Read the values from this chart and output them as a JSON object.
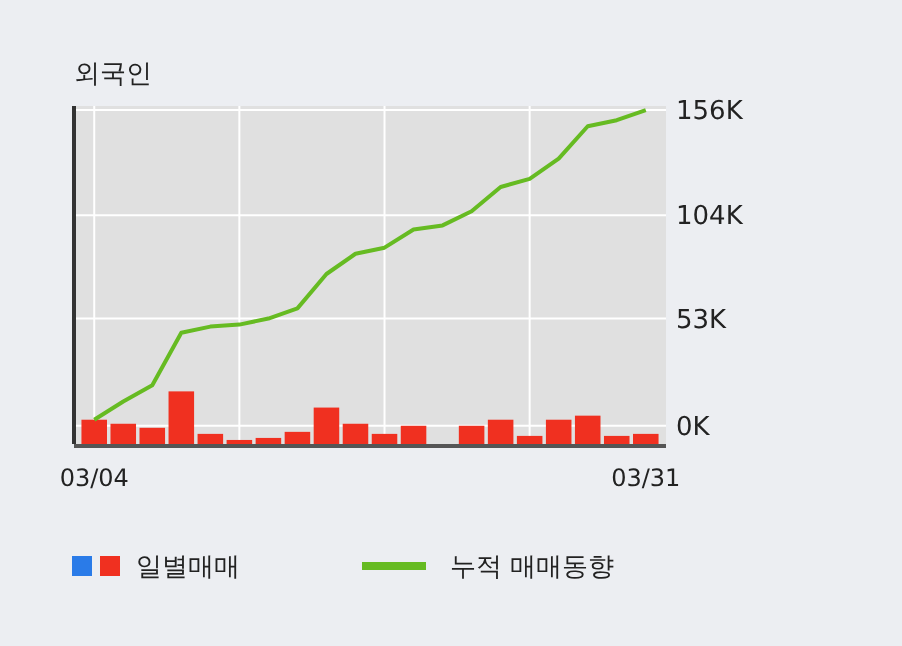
{
  "chart_data": {
    "type": "bar",
    "title": "외국인",
    "categories": [
      "03/04",
      null,
      null,
      null,
      null,
      null,
      null,
      null,
      null,
      null,
      null,
      null,
      null,
      null,
      null,
      null,
      null,
      null,
      null,
      "03/31"
    ],
    "series": [
      {
        "name": "일별매매",
        "color": "#f03020",
        "base": [
          -9,
          -9,
          -9,
          -9,
          -9,
          -9,
          -9,
          -9,
          -9,
          -9,
          -9,
          -9,
          null,
          -9,
          -9,
          -9,
          -9,
          -9,
          -9,
          -9
        ],
        "values": [
          12,
          10,
          8,
          26,
          5,
          2,
          3,
          6,
          18,
          10,
          5,
          9,
          null,
          9,
          12,
          4,
          12,
          14,
          4,
          5
        ]
      },
      {
        "name": "누적 매매동향",
        "type": "line",
        "color": "#66bb22",
        "values": [
          3,
          12,
          20,
          46,
          49,
          50,
          53,
          58,
          75,
          85,
          88,
          97,
          99,
          106,
          118,
          122,
          132,
          148,
          151,
          156
        ]
      }
    ],
    "ylim": [
      -9,
      158
    ],
    "yticks": [
      {
        "value": 0,
        "label": "0K"
      },
      {
        "value": 53,
        "label": "53K"
      },
      {
        "value": 104,
        "label": "104K"
      },
      {
        "value": 156,
        "label": "156K"
      }
    ],
    "grid": true,
    "legend": "bottom"
  }
}
